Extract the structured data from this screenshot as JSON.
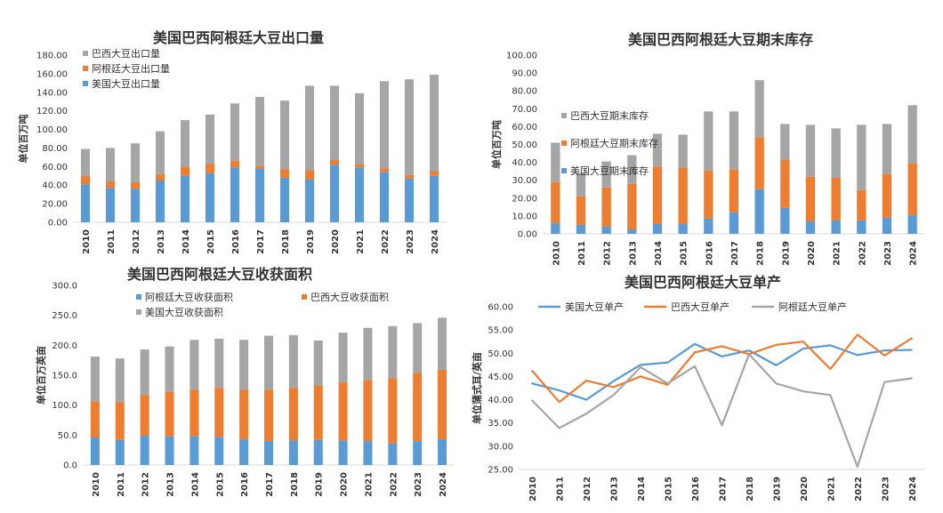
{
  "colors": {
    "blue": "#5b9bd5",
    "orange": "#ed7d31",
    "gray": "#a5a5a5"
  },
  "chart_data": [
    {
      "type": "bar",
      "stacked": true,
      "title": "美国巴西阿根廷大豆出口量",
      "ylabel": "单位百万吨",
      "ylim": [
        0,
        180
      ],
      "yticks": [
        "0.00",
        "20.00",
        "40.00",
        "60.00",
        "80.00",
        "100.00",
        "120.00",
        "140.00",
        "160.00",
        "180.00"
      ],
      "categories": [
        "2010",
        "2011",
        "2012",
        "2013",
        "2014",
        "2015",
        "2016",
        "2017",
        "2018",
        "2019",
        "2020",
        "2021",
        "2022",
        "2023",
        "2024"
      ],
      "legend_position": "top-left",
      "series": [
        {
          "name": "美国大豆出口量",
          "color": "#5b9bd5",
          "values": [
            41,
            37,
            36,
            45,
            50,
            53,
            59,
            58,
            48,
            46,
            62,
            59,
            54,
            47,
            50
          ]
        },
        {
          "name": "阿根廷大豆出口量",
          "color": "#ed7d31",
          "values": [
            9,
            7,
            7,
            7,
            10,
            10,
            7,
            3,
            9,
            10,
            5,
            4,
            4,
            4,
            5
          ]
        },
        {
          "name": "巴西大豆出口量",
          "color": "#a5a5a5",
          "values": [
            29,
            36,
            42,
            46,
            50,
            53,
            62,
            74,
            74,
            91,
            80,
            76,
            94,
            103,
            104
          ]
        }
      ]
    },
    {
      "type": "bar",
      "stacked": true,
      "title": "美国巴西阿根廷大豆期末库存",
      "ylabel": "单位百万吨",
      "ylim": [
        0,
        100
      ],
      "yticks": [
        "0.00",
        "10.00",
        "20.00",
        "30.00",
        "40.00",
        "50.00",
        "60.00",
        "70.00",
        "80.00",
        "90.00",
        "100.00"
      ],
      "categories": [
        "2010",
        "2011",
        "2012",
        "2013",
        "2014",
        "2015",
        "2016",
        "2017",
        "2018",
        "2019",
        "2020",
        "2021",
        "2022",
        "2023",
        "2024"
      ],
      "legend_position": "left",
      "series": [
        {
          "name": "美国大豆期末库存",
          "color": "#5b9bd5",
          "values": [
            6,
            5,
            4,
            2.5,
            5.5,
            5.5,
            8.5,
            12,
            25,
            14.5,
            7,
            7.5,
            7.5,
            9,
            10.5
          ]
        },
        {
          "name": "阿根廷大豆期末库存",
          "color": "#ed7d31",
          "values": [
            23,
            16,
            22,
            25.5,
            32,
            31.5,
            27,
            24,
            29,
            27,
            25,
            24,
            17,
            24.5,
            29
          ]
        },
        {
          "name": "巴西大豆期末库存",
          "color": "#a5a5a5",
          "values": [
            22,
            13,
            14.5,
            16,
            18.5,
            18.5,
            33,
            32.5,
            32,
            20,
            29,
            27.5,
            36.5,
            28,
            32.5
          ]
        }
      ]
    },
    {
      "type": "bar",
      "stacked": true,
      "title": "美国巴西阿根廷大豆收获面积",
      "ylabel": "单位百万英亩",
      "ylim": [
        0,
        300
      ],
      "yticks": [
        "0.0",
        "50.0",
        "100.0",
        "150.0",
        "200.0",
        "250.0",
        "300.0"
      ],
      "categories": [
        "2010",
        "2011",
        "2012",
        "2013",
        "2014",
        "2015",
        "2016",
        "2017",
        "2018",
        "2019",
        "2020",
        "2021",
        "2022",
        "2023",
        "2024"
      ],
      "legend_position": "top",
      "series": [
        {
          "name": "阿根廷大豆收获面积",
          "color": "#5b9bd5",
          "values": [
            46,
            42,
            49,
            48,
            48,
            47,
            43,
            40,
            41,
            42,
            41,
            40,
            36,
            40,
            43
          ]
        },
        {
          "name": "巴西大豆收获面积",
          "color": "#ed7d31",
          "values": [
            60,
            63,
            68,
            74,
            78,
            82,
            83,
            86,
            88,
            91,
            97,
            102,
            109,
            114,
            116
          ]
        },
        {
          "name": "美国大豆收获面积",
          "color": "#a5a5a5",
          "values": [
            75,
            73,
            76,
            76,
            83,
            82,
            83,
            90,
            88,
            75,
            83,
            87,
            87,
            83,
            87
          ]
        }
      ]
    },
    {
      "type": "line",
      "title": "美国巴西阿根廷大豆单产",
      "ylabel": "单位蒲式耳/英亩",
      "ylim": [
        25,
        60
      ],
      "yticks": [
        "25.00",
        "30.00",
        "35.00",
        "40.00",
        "45.00",
        "50.00",
        "55.00",
        "60.00"
      ],
      "categories": [
        "2010",
        "2011",
        "2012",
        "2013",
        "2014",
        "2015",
        "2016",
        "2017",
        "2018",
        "2019",
        "2020",
        "2021",
        "2022",
        "2023",
        "2024"
      ],
      "legend_position": "top",
      "series": [
        {
          "name": "美国大豆单产",
          "color": "#5b9bd5",
          "values": [
            43.5,
            42,
            40,
            44,
            47.5,
            48,
            52,
            49.3,
            50.6,
            47.4,
            51,
            51.7,
            49.6,
            50.6,
            50.7
          ]
        },
        {
          "name": "巴西大豆单产",
          "color": "#ed7d31",
          "values": [
            46.2,
            39.5,
            44.1,
            42.7,
            45,
            43.2,
            50.2,
            51.5,
            49.8,
            51.8,
            52.5,
            46.6,
            54,
            49.5,
            53.2
          ]
        },
        {
          "name": "阿根廷大豆单产",
          "color": "#a5a5a5",
          "values": [
            39.8,
            33.9,
            37,
            41,
            47,
            43.5,
            47.2,
            34.5,
            49.8,
            43.5,
            41.8,
            41,
            25.6,
            43.8,
            44.6
          ]
        }
      ]
    }
  ]
}
